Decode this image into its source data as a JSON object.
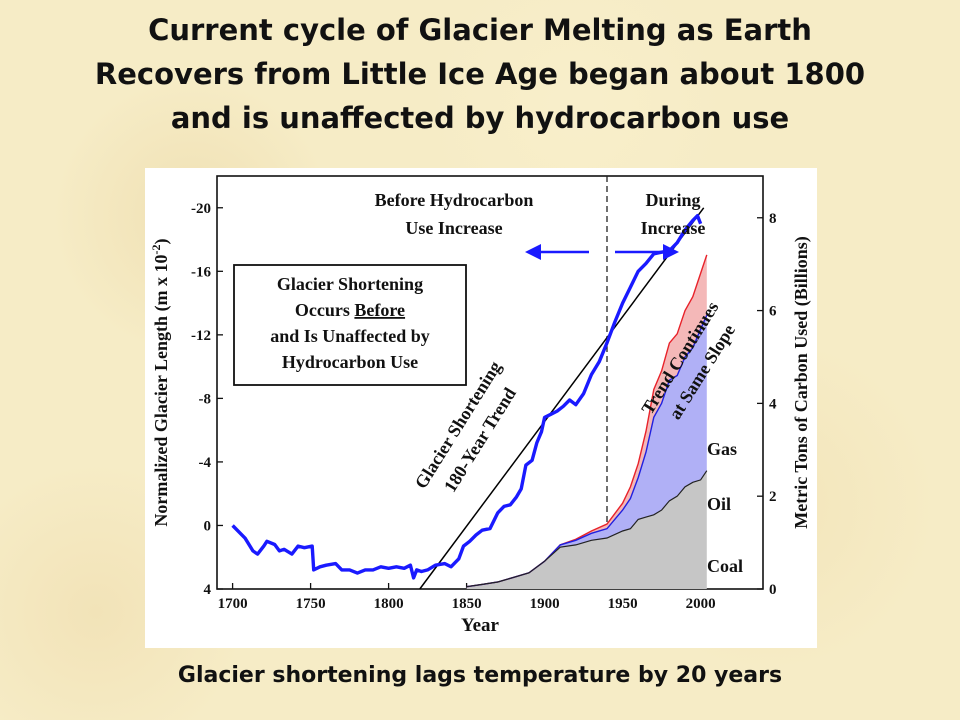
{
  "slide": {
    "title_lines": [
      "Current cycle of Glacier Melting as Earth",
      "Recovers from Little Ice Age began about 1800",
      "and is unaffected by hydrocarbon use"
    ],
    "caption": "Glacier shortening lags temperature by 20 years"
  },
  "colors": {
    "background": "#f6ecc6",
    "glacier_line": "#1a1aff",
    "trend_line": "#000000",
    "gas_fill": "#f4b8b8",
    "gas_line": "#e8222a",
    "oil_fill": "#b0b0f6",
    "oil_line": "#2020e0",
    "coal_fill": "#c6c6c6",
    "coal_line": "#222222"
  },
  "chart_data": {
    "type": "line",
    "xlabel": "Year",
    "ylabel_left": "Normalized Glacier Length (m x 10",
    "ylabel_left_exp": "-2",
    "ylabel_left_close": ")",
    "ylabel_right": "Metric Tons of Carbon Used (Billions)",
    "xlim": [
      1690,
      2040
    ],
    "ylim_left": [
      4,
      -22
    ],
    "ylim_right": [
      0,
      8.9
    ],
    "x_ticks": [
      1700,
      1750,
      1800,
      1850,
      1900,
      1950,
      2000
    ],
    "y_ticks_left": [
      4,
      0,
      -4,
      -8,
      -12,
      -16,
      -20
    ],
    "y_ticks_right": [
      0,
      2,
      4,
      6,
      8
    ],
    "y_ticks_left_labels": [
      "4",
      "0",
      "-4",
      "-8",
      "-12",
      "-16",
      "-20"
    ],
    "y_ticks_right_labels": [
      "0",
      "2",
      "4",
      "6",
      "8"
    ],
    "x_ticks_labels": [
      "1700",
      "1750",
      "1800",
      "1850",
      "1900",
      "1950",
      "2000"
    ],
    "divider_year": 1940,
    "series": [
      {
        "role": "glacier",
        "x": [
          1700,
          1708,
          1713,
          1716,
          1720,
          1722,
          1727,
          1730,
          1733,
          1738,
          1742,
          1746,
          1751,
          1752,
          1756,
          1760,
          1766,
          1770,
          1775,
          1780,
          1785,
          1790,
          1795,
          1800,
          1805,
          1810,
          1814,
          1816,
          1818,
          1821,
          1825,
          1830,
          1836,
          1840,
          1845,
          1848,
          1852,
          1856,
          1860,
          1865,
          1870,
          1874,
          1878,
          1882,
          1885,
          1888,
          1892,
          1895,
          1898,
          1900,
          1904,
          1908,
          1912,
          1916,
          1920,
          1925,
          1930,
          1935,
          1940,
          1945,
          1950,
          1955,
          1960,
          1965,
          1970,
          1975,
          1980,
          1985,
          1990,
          1995,
          1998,
          2000
        ],
        "y": [
          0,
          0.8,
          1.6,
          1.8,
          1.3,
          1.0,
          1.2,
          1.6,
          1.5,
          1.8,
          1.3,
          1.4,
          1.3,
          2.8,
          2.6,
          2.5,
          2.4,
          2.8,
          2.8,
          3.0,
          2.8,
          2.8,
          2.6,
          2.7,
          2.6,
          2.7,
          2.5,
          3.3,
          2.8,
          2.9,
          2.8,
          2.5,
          2.4,
          2.6,
          2.1,
          1.3,
          1.0,
          0.6,
          0.3,
          0.2,
          -0.8,
          -1.2,
          -1.3,
          -1.8,
          -2.3,
          -3.8,
          -4.1,
          -5.2,
          -5.9,
          -6.8,
          -7.0,
          -7.2,
          -7.5,
          -7.9,
          -7.6,
          -8.3,
          -9.5,
          -10.3,
          -11.5,
          -12.8,
          -14.0,
          -15.0,
          -16.0,
          -16.5,
          -17.1,
          -17.2,
          -17.3,
          -17.8,
          -18.6,
          -19.2,
          -19.5,
          -19.0
        ]
      },
      {
        "role": "trend",
        "x": [
          1820,
          2002
        ],
        "y": [
          4.0,
          -20.0
        ]
      }
    ],
    "carbon_series": {
      "years": [
        1850,
        1860,
        1870,
        1880,
        1890,
        1900,
        1910,
        1920,
        1930,
        1940,
        1950,
        1955,
        1960,
        1965,
        1970,
        1975,
        1980,
        1985,
        1990,
        1995,
        2000,
        2004
      ],
      "coal": [
        0.05,
        0.1,
        0.15,
        0.25,
        0.35,
        0.6,
        0.9,
        0.95,
        1.05,
        1.1,
        1.25,
        1.3,
        1.5,
        1.55,
        1.6,
        1.7,
        1.9,
        2.0,
        2.2,
        2.3,
        2.35,
        2.55
      ],
      "oil_total": [
        0.05,
        0.1,
        0.15,
        0.25,
        0.35,
        0.6,
        0.95,
        1.05,
        1.2,
        1.3,
        1.7,
        1.95,
        2.4,
        2.95,
        3.7,
        4.0,
        4.5,
        4.6,
        5.0,
        5.2,
        5.6,
        5.9
      ],
      "gas_total": [
        0.05,
        0.1,
        0.15,
        0.25,
        0.35,
        0.6,
        0.95,
        1.07,
        1.25,
        1.4,
        1.85,
        2.2,
        2.7,
        3.4,
        4.3,
        4.7,
        5.3,
        5.5,
        6.0,
        6.3,
        6.8,
        7.2
      ],
      "series_labels": [
        "Gas",
        "Oil",
        "Coal"
      ]
    },
    "annotations": {
      "before_line1": "Before Hydrocarbon",
      "before_line2": "Use Increase",
      "during_line1": "During",
      "during_line2": "Increase",
      "box_line1": "Glacier Shortening",
      "box_line2_pre": "Occurs ",
      "box_line2_under": "Before",
      "box_line3": "and Is Unaffected by",
      "box_line4": "Hydrocarbon Use",
      "trend1_line1": "Glacier Shortening",
      "trend1_line2": "180-Year Trend",
      "trend2_line1": "Trend Continues",
      "trend2_line2": "at Same Slope"
    }
  }
}
